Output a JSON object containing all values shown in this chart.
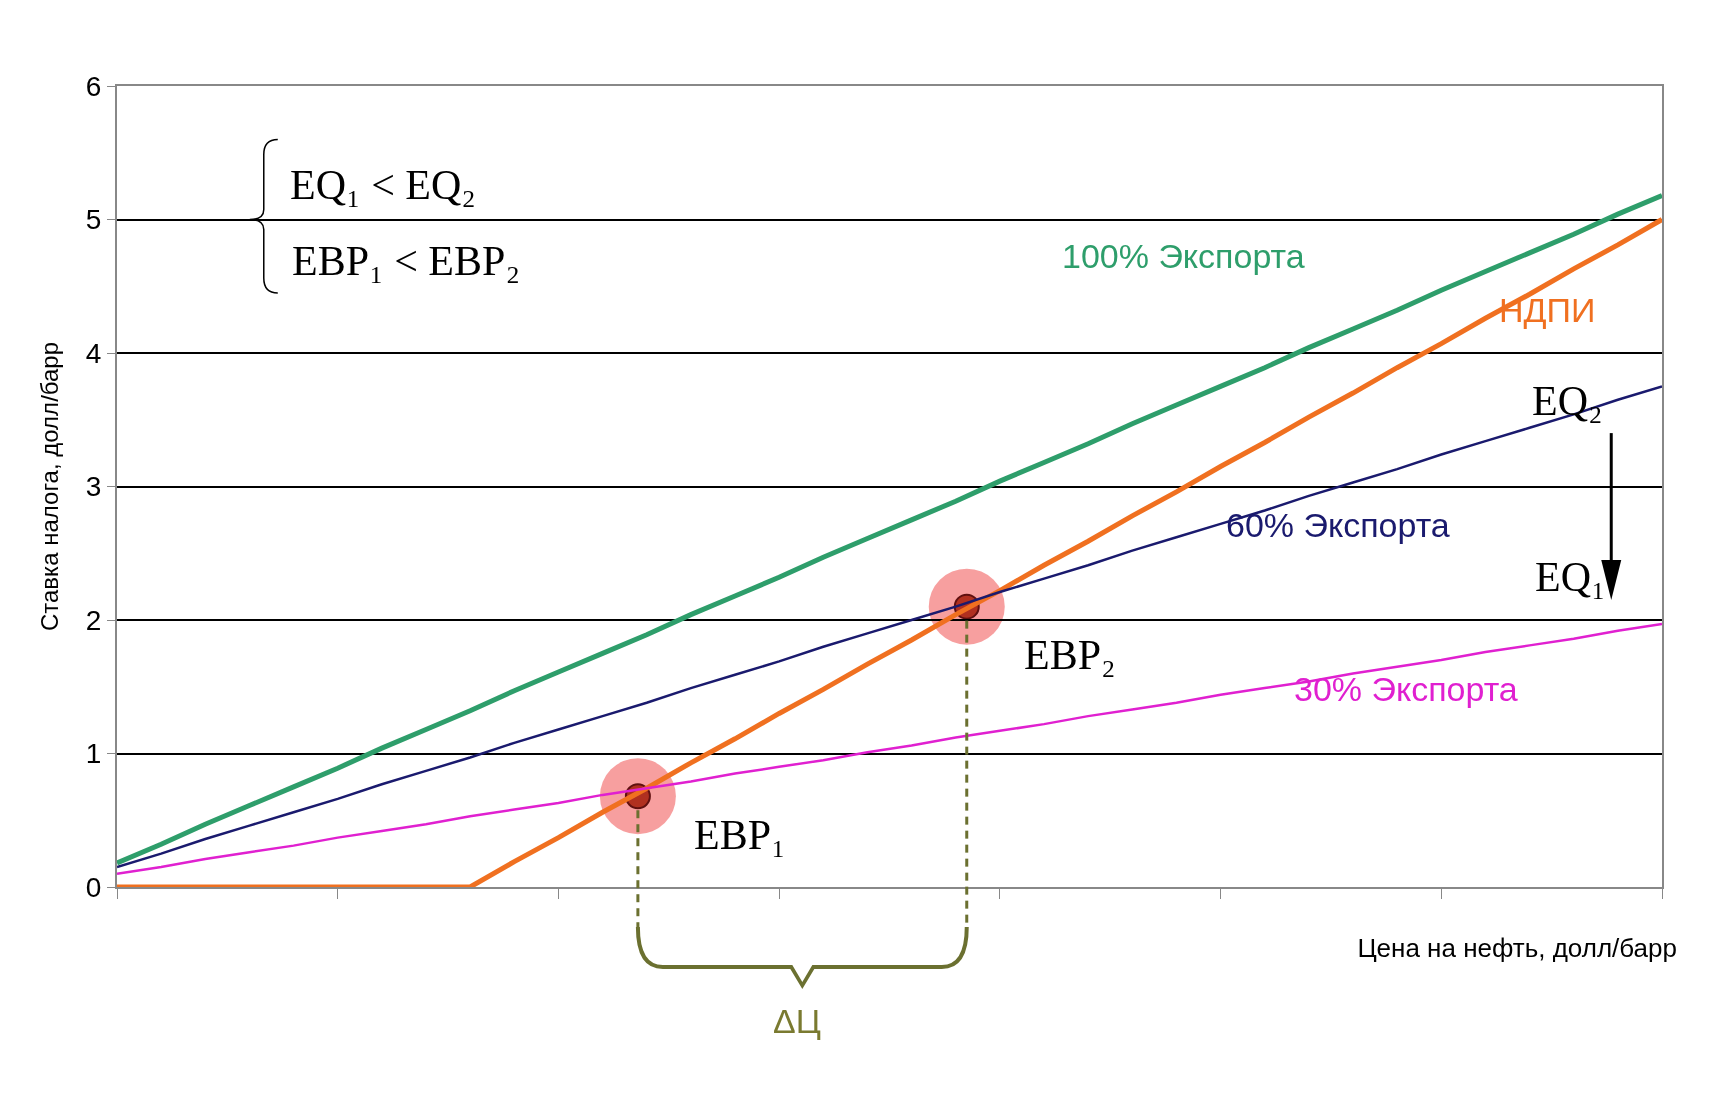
{
  "chart_data": {
    "type": "line",
    "xlabel": "Цена на нефть, долл/барр",
    "ylabel": "Ставка налога, долл/барр",
    "categories": [
      null,
      null,
      null,
      null,
      null,
      null,
      null,
      null,
      null,
      null,
      null,
      null,
      null,
      null,
      null,
      null,
      null,
      null,
      null,
      null,
      null,
      null,
      null,
      null,
      null,
      null,
      null,
      null,
      null,
      null,
      null,
      null,
      null,
      null,
      null,
      null
    ],
    "series": [
      {
        "name": "100% Экспорта",
        "color": "#2e9e6b",
        "values": [
          0.18,
          0.32,
          0.47,
          0.61,
          0.75,
          0.89,
          1.04,
          1.18,
          1.32,
          1.47,
          1.61,
          1.75,
          1.89,
          2.04,
          2.18,
          2.32,
          2.47,
          2.61,
          2.75,
          2.89,
          3.04,
          3.18,
          3.32,
          3.47,
          3.61,
          3.75,
          3.89,
          4.04,
          4.18,
          4.32,
          4.47,
          4.61,
          4.75,
          4.89,
          5.04,
          5.18
        ]
      },
      {
        "name": "НДПИ",
        "color": "#f07020",
        "values": [
          0,
          0,
          0,
          0,
          0,
          0,
          0,
          0,
          0,
          0.19,
          0.37,
          0.56,
          0.74,
          0.93,
          1.11,
          1.3,
          1.48,
          1.67,
          1.85,
          2.04,
          2.22,
          2.41,
          2.59,
          2.78,
          2.96,
          3.15,
          3.33,
          3.52,
          3.7,
          3.89,
          4.07,
          4.26,
          4.44,
          4.63,
          4.81,
          5.0
        ]
      },
      {
        "name": "60% Экспорта",
        "color": "#1a1a6e",
        "values": [
          0.15,
          0.25,
          0.36,
          0.46,
          0.56,
          0.66,
          0.77,
          0.87,
          0.97,
          1.08,
          1.18,
          1.28,
          1.38,
          1.49,
          1.59,
          1.69,
          1.8,
          1.9,
          2.0,
          2.1,
          2.21,
          2.31,
          2.41,
          2.52,
          2.62,
          2.72,
          2.82,
          2.93,
          3.03,
          3.13,
          3.24,
          3.34,
          3.44,
          3.54,
          3.65,
          3.75
        ]
      },
      {
        "name": "30% Экспорта",
        "color": "#e020d0",
        "values": [
          0.1,
          0.15,
          0.21,
          0.26,
          0.31,
          0.37,
          0.42,
          0.47,
          0.53,
          0.58,
          0.63,
          0.69,
          0.74,
          0.79,
          0.85,
          0.9,
          0.95,
          1.01,
          1.06,
          1.12,
          1.17,
          1.22,
          1.28,
          1.33,
          1.38,
          1.44,
          1.49,
          1.54,
          1.6,
          1.65,
          1.7,
          1.76,
          1.81,
          1.86,
          1.92,
          1.97
        ]
      }
    ],
    "ylim": [
      0,
      6
    ],
    "yticks": [
      0,
      1,
      2,
      3,
      4,
      5,
      6
    ],
    "grid": "y",
    "legend": false,
    "marker": "none",
    "line_style": "solid",
    "annotations": [
      "EQ₁ < EQ₂",
      "EBP₁ < EBP₂",
      "EQ₂",
      "EQ₁",
      "EBP₂",
      "EBP₁",
      "ΔЦ"
    ]
  }
}
